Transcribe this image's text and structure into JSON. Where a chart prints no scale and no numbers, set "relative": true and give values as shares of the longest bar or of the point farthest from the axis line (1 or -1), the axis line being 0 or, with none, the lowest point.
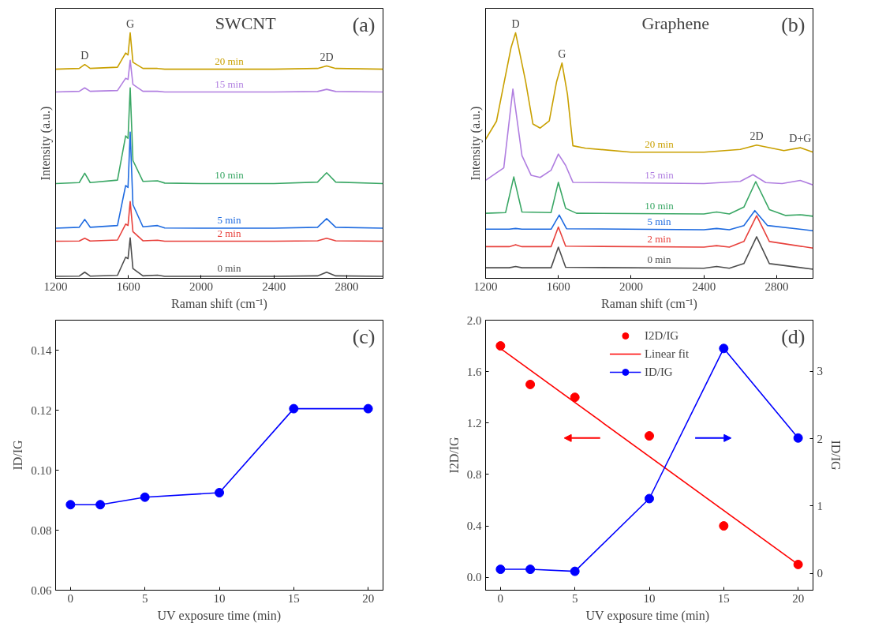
{
  "chart_data": [
    {
      "type": "line",
      "title": "SWCNT",
      "xlabel": "Raman shift (cm⁻¹)",
      "ylabel": "Intensity (a.u.)",
      "relative": true,
      "legend": false,
      "grid": false,
      "marker": "none",
      "xlim": [
        1200,
        3000
      ],
      "xticks": [
        1200,
        1600,
        2000,
        2400,
        2800
      ],
      "x": [
        1200,
        1330,
        1360,
        1390,
        1540,
        1585,
        1598,
        1610,
        1625,
        1680,
        1760,
        1800,
        2000,
        2400,
        2640,
        2690,
        2740,
        3000
      ],
      "annotations": [
        "(a)",
        {
          "text": "D",
          "x": 1360,
          "y": 0.871
        },
        {
          "text": "G",
          "x": 1610,
          "y": 1.0
        },
        {
          "text": "2D",
          "x": 2690,
          "y": 0.865
        }
      ],
      "series": [
        {
          "name": "0 min",
          "color": "#4d4d4d",
          "values": [
            0.008,
            0.009,
            0.025,
            0.009,
            0.012,
            0.086,
            0.08,
            0.165,
            0.04,
            0.01,
            0.013,
            0.008,
            0.008,
            0.008,
            0.01,
            0.025,
            0.01,
            0.008
          ]
        },
        {
          "name": "2 min",
          "color": "#e8413c",
          "values": [
            0.151,
            0.152,
            0.163,
            0.152,
            0.156,
            0.221,
            0.215,
            0.313,
            0.19,
            0.153,
            0.155,
            0.151,
            0.151,
            0.151,
            0.153,
            0.163,
            0.153,
            0.151
          ]
        },
        {
          "name": "5 min",
          "color": "#1f6be0",
          "values": [
            0.204,
            0.208,
            0.24,
            0.208,
            0.215,
            0.378,
            0.37,
            0.596,
            0.3,
            0.21,
            0.215,
            0.205,
            0.204,
            0.204,
            0.208,
            0.243,
            0.208,
            0.204
          ]
        },
        {
          "name": "10 min",
          "color": "#3aa765",
          "values": [
            0.386,
            0.39,
            0.428,
            0.39,
            0.4,
            0.58,
            0.57,
            0.776,
            0.48,
            0.395,
            0.397,
            0.388,
            0.386,
            0.386,
            0.392,
            0.43,
            0.392,
            0.386
          ]
        },
        {
          "name": "15 min",
          "color": "#b07ee0",
          "values": [
            0.759,
            0.762,
            0.776,
            0.762,
            0.765,
            0.815,
            0.81,
            0.888,
            0.79,
            0.762,
            0.762,
            0.759,
            0.759,
            0.759,
            0.761,
            0.77,
            0.761,
            0.759
          ]
        },
        {
          "name": "20 min",
          "color": "#c9a000",
          "values": [
            0.852,
            0.855,
            0.871,
            0.855,
            0.86,
            0.918,
            0.91,
            1.0,
            0.88,
            0.855,
            0.855,
            0.852,
            0.852,
            0.852,
            0.855,
            0.865,
            0.855,
            0.852
          ]
        }
      ]
    },
    {
      "type": "line",
      "title": "Graphene",
      "xlabel": "Raman shift (cm⁻¹)",
      "ylabel": "Intensity (a.u.)",
      "relative": true,
      "legend": false,
      "grid": false,
      "marker": "none",
      "xlim": [
        1200,
        3000
      ],
      "xticks": [
        1200,
        1600,
        2000,
        2400,
        2800
      ],
      "annotations": [
        "(b)",
        {
          "text": "D",
          "x": 1365,
          "y": 1.0
        },
        {
          "text": "G",
          "x": 1620,
          "y": 0.877
        },
        {
          "text": "2D",
          "x": 2690,
          "y": 0.543
        },
        {
          "text": "D+G",
          "x": 2930,
          "y": 0.532
        }
      ],
      "series": [
        {
          "name": "0 min",
          "color": "#4d4d4d",
          "x": [
            1200,
            1330,
            1365,
            1400,
            1560,
            1600,
            1640,
            2400,
            2470,
            2540,
            2620,
            2690,
            2760,
            3000
          ],
          "values": [
            0.043,
            0.043,
            0.048,
            0.043,
            0.043,
            0.127,
            0.045,
            0.041,
            0.048,
            0.041,
            0.06,
            0.169,
            0.06,
            0.037
          ]
        },
        {
          "name": "2 min",
          "color": "#e8413c",
          "x": [
            1200,
            1330,
            1365,
            1400,
            1560,
            1600,
            1640,
            2400,
            2470,
            2540,
            2620,
            2690,
            2760,
            3000
          ],
          "values": [
            0.129,
            0.129,
            0.137,
            0.129,
            0.129,
            0.209,
            0.131,
            0.127,
            0.133,
            0.127,
            0.15,
            0.255,
            0.15,
            0.123
          ]
        },
        {
          "name": "5 min",
          "color": "#1f6be0",
          "x": [
            1200,
            1330,
            1365,
            1400,
            1560,
            1605,
            1645,
            2400,
            2470,
            2540,
            2620,
            2680,
            2750,
            3000
          ],
          "values": [
            0.2,
            0.2,
            0.203,
            0.2,
            0.2,
            0.258,
            0.202,
            0.198,
            0.203,
            0.198,
            0.215,
            0.276,
            0.215,
            0.194
          ]
        },
        {
          "name": "10 min",
          "color": "#3aa765",
          "x": [
            1200,
            1310,
            1355,
            1400,
            1560,
            1600,
            1640,
            1700,
            2400,
            2470,
            2540,
            2620,
            2685,
            2760,
            2850,
            2930,
            3000
          ],
          "values": [
            0.265,
            0.268,
            0.413,
            0.27,
            0.268,
            0.391,
            0.285,
            0.265,
            0.262,
            0.27,
            0.262,
            0.29,
            0.394,
            0.28,
            0.256,
            0.259,
            0.253
          ]
        },
        {
          "name": "15 min",
          "color": "#b07ee0",
          "x": [
            1200,
            1300,
            1350,
            1400,
            1450,
            1500,
            1560,
            1600,
            1640,
            1680,
            2400,
            2600,
            2670,
            2740,
            2830,
            2930,
            3000
          ],
          "values": [
            0.399,
            0.45,
            0.771,
            0.5,
            0.42,
            0.411,
            0.44,
            0.506,
            0.46,
            0.391,
            0.386,
            0.395,
            0.422,
            0.39,
            0.386,
            0.399,
            0.38
          ]
        },
        {
          "name": "20 min",
          "color": "#c9a000",
          "x": [
            1200,
            1260,
            1300,
            1340,
            1365,
            1420,
            1460,
            1500,
            1550,
            1590,
            1620,
            1650,
            1680,
            1750,
            2000,
            2400,
            2600,
            2690,
            2840,
            2930,
            3000
          ],
          "values": [
            0.566,
            0.64,
            0.791,
            0.94,
            1.0,
            0.802,
            0.629,
            0.612,
            0.641,
            0.8,
            0.877,
            0.75,
            0.54,
            0.53,
            0.514,
            0.514,
            0.525,
            0.543,
            0.52,
            0.532,
            0.514
          ]
        }
      ]
    },
    {
      "type": "line",
      "xlabel": "UV exposure time (min)",
      "ylabel": "ID/IG",
      "grid": false,
      "marker": "circle",
      "xlim": [
        -1,
        21
      ],
      "xticks": [
        0,
        5,
        10,
        15,
        20
      ],
      "ylim": [
        0.06,
        0.15
      ],
      "yticks": [
        0.06,
        0.08,
        {
          "value": 0.1,
          "label": "0.10"
        },
        0.12,
        0.14
      ],
      "annotations": [
        "(c)"
      ],
      "x": [
        0,
        2,
        5,
        10,
        15,
        20
      ],
      "series": [
        {
          "color": "#0000ff",
          "values": [
            0.0885,
            0.0885,
            0.091,
            0.0925,
            0.1205,
            0.1205
          ]
        }
      ]
    },
    {
      "type": "scatter",
      "xlabel": "UV exposure  time (min)",
      "ylabel": "I2D/IG",
      "y2label": "ID/IG",
      "legend": "top",
      "grid": false,
      "xlim": [
        -1,
        21
      ],
      "xticks": [
        0,
        5,
        10,
        15,
        20
      ],
      "ylim": [
        -0.1,
        2.0
      ],
      "yticks": [
        {
          "value": 0,
          "label": "0.0"
        },
        0.4,
        0.8,
        1.2,
        1.6,
        {
          "value": 2,
          "label": "2.0"
        }
      ],
      "y2lim": [
        -0.25,
        3.76
      ],
      "y2ticks": [
        0,
        1,
        2,
        3
      ],
      "annotations": [
        "(d)"
      ],
      "x": [
        0,
        2,
        5,
        10,
        15,
        20
      ],
      "series": [
        {
          "name": "I2D/IG",
          "type": "scatter",
          "marker": "circle",
          "color": "#ff0000",
          "values": [
            1.8,
            1.5,
            1.4,
            1.1,
            0.4,
            0.1
          ]
        },
        {
          "name": "Linear fit",
          "type": "line",
          "marker": "none",
          "color": "#ff0000",
          "x": [
            0,
            20
          ],
          "values": [
            1.78,
            0.1
          ]
        },
        {
          "name": "ID/IG",
          "type": "line",
          "marker": "circle",
          "axis": "y2",
          "color": "#0000ff",
          "values": [
            0.06,
            0.06,
            0.03,
            1.11,
            3.34,
            2.01
          ]
        }
      ]
    }
  ]
}
